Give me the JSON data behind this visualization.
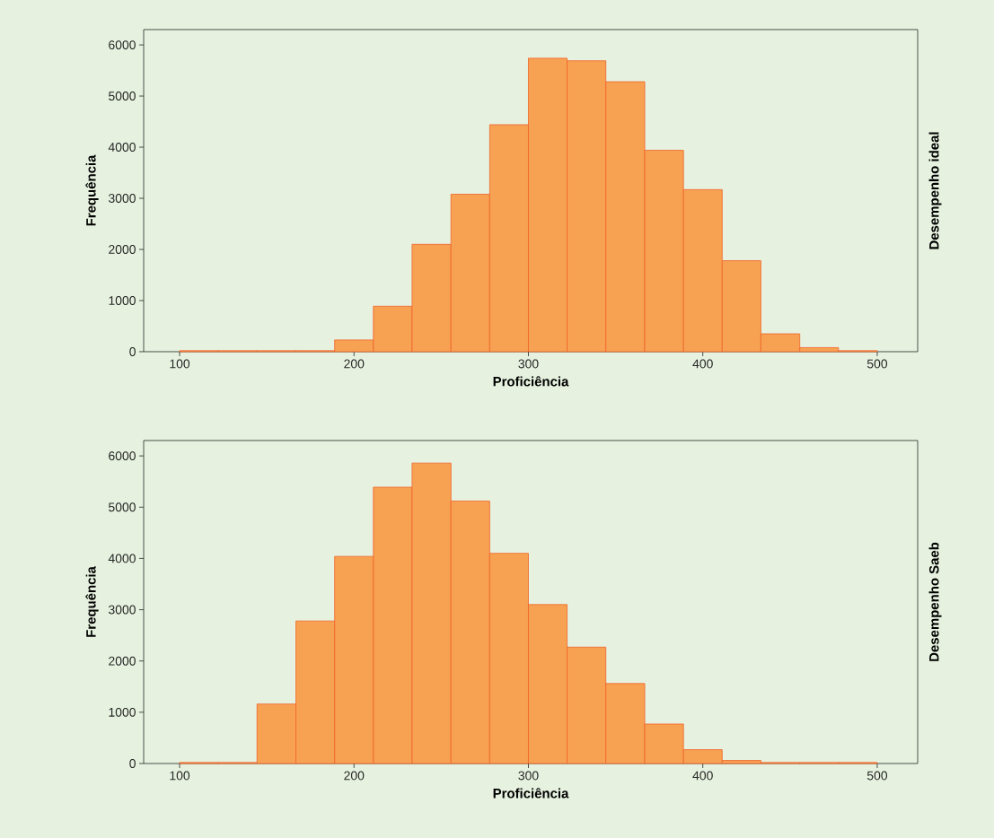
{
  "chart_data": [
    {
      "type": "histogram",
      "xlabel": "Proficiência",
      "ylabel": "Frequência",
      "y2label": "Desempenho ideal",
      "color": "#f7a253",
      "bins": [
        100,
        122.2,
        144.4,
        166.7,
        188.9,
        211.1,
        233.3,
        255.6,
        277.8,
        300,
        322.2,
        344.4,
        366.7,
        388.9,
        411.1,
        433.3,
        455.6,
        477.8,
        500
      ],
      "values": [
        20,
        20,
        20,
        20,
        230,
        890,
        2100,
        3080,
        4440,
        5740,
        5690,
        5280,
        3940,
        3170,
        1780,
        350,
        80,
        20
      ],
      "xlim": [
        79.4,
        523.2
      ],
      "ylim": [
        0,
        6300
      ],
      "xticks": [
        100,
        200,
        300,
        400,
        500
      ],
      "yticks": [
        0,
        1000,
        2000,
        3000,
        4000,
        5000,
        6000
      ]
    },
    {
      "type": "histogram",
      "xlabel": "Proficiência",
      "ylabel": "Frequência",
      "y2label": "Desempenho Saeb",
      "color": "#f7a253",
      "bins": [
        100,
        122.2,
        144.4,
        166.7,
        188.9,
        211.1,
        233.3,
        255.6,
        277.8,
        300,
        322.2,
        344.4,
        366.7,
        388.9,
        411.1,
        433.3,
        455.6,
        477.8,
        500
      ],
      "values": [
        20,
        20,
        1160,
        2780,
        4040,
        5390,
        5860,
        5120,
        4100,
        3100,
        2270,
        1560,
        770,
        270,
        60,
        20,
        20,
        20
      ],
      "xlim": [
        79.4,
        523.2
      ],
      "ylim": [
        0,
        6300
      ],
      "xticks": [
        100,
        200,
        300,
        400,
        500
      ],
      "yticks": [
        0,
        1000,
        2000,
        3000,
        4000,
        5000,
        6000
      ]
    }
  ]
}
